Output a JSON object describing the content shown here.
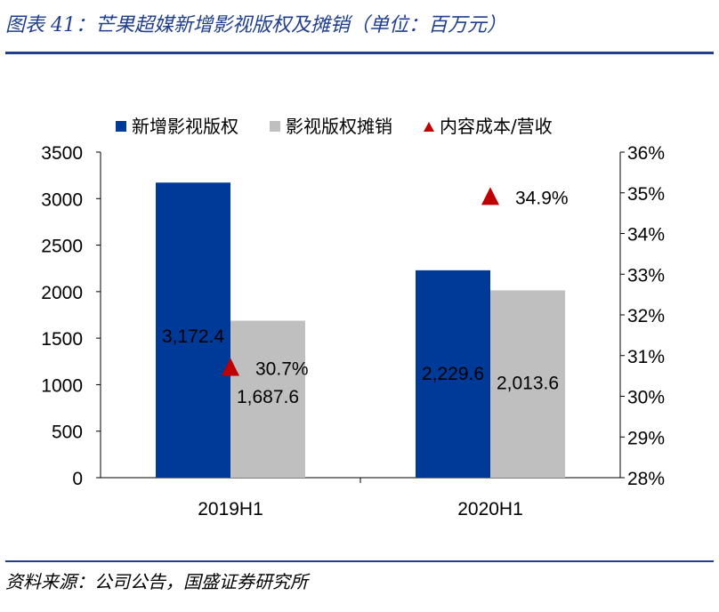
{
  "page": {
    "title": "图表 41：芒果超媒新增影视版权及摊销（单位：百万元）",
    "source": "资料来源：公司公告，国盛证券研究所"
  },
  "colors": {
    "new_rights": "#003a98",
    "amortization": "#bfbfbf",
    "ratio": "#c00000",
    "rule": "#1f3e8c"
  },
  "chart_data": {
    "type": "bar",
    "categories": [
      "2019H1",
      "2020H1"
    ],
    "series": [
      {
        "name": "新增影视版权",
        "type": "bar",
        "axis": "left",
        "values": [
          3172.4,
          2229.6
        ],
        "labels": [
          "3,172.4",
          "2,229.6"
        ]
      },
      {
        "name": "影视版权摊销",
        "type": "bar",
        "axis": "left",
        "values": [
          1687.6,
          2013.6
        ],
        "labels": [
          "1,687.6",
          "2,013.6"
        ]
      },
      {
        "name": "内容成本/营收",
        "type": "scatter",
        "marker": "triangle",
        "axis": "right",
        "values": [
          30.7,
          34.9
        ],
        "labels": [
          "30.7%",
          "34.9%"
        ]
      }
    ],
    "left_axis": {
      "ylim": [
        0,
        3500
      ],
      "ticks": [
        "0",
        "500",
        "1000",
        "1500",
        "2000",
        "2500",
        "3000",
        "3500"
      ]
    },
    "right_axis": {
      "ylim": [
        28,
        36
      ],
      "ticks": [
        "28%",
        "29%",
        "30%",
        "31%",
        "32%",
        "33%",
        "34%",
        "35%",
        "36%"
      ]
    },
    "legend_position": "top",
    "grid": false
  }
}
